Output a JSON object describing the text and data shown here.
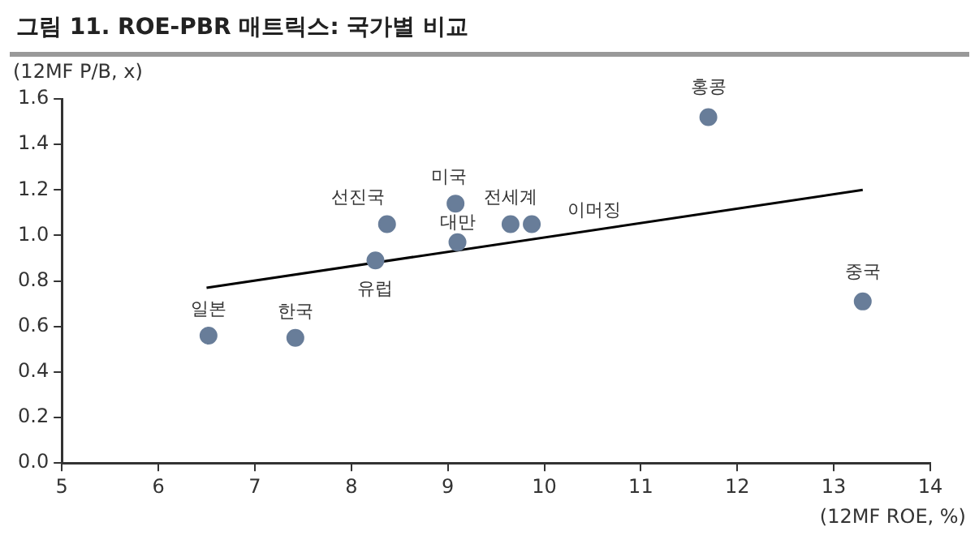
{
  "chart_data": {
    "type": "scatter",
    "title": "그림 11. ROE-PBR 매트릭스: 국가별 비교",
    "xlabel": "(12MF ROE, %)",
    "ylabel": "(12MF P/B, x)",
    "xlim": [
      5,
      14
    ],
    "xticks": [
      5,
      6,
      7,
      8,
      9,
      10,
      11,
      12,
      13,
      14
    ],
    "ylim": [
      0,
      1.6
    ],
    "yticks": [
      {
        "value": 0,
        "label": "0.0"
      },
      0.2,
      0.4,
      0.6,
      0.8,
      {
        "value": 1,
        "label": "1.0"
      },
      1.2,
      1.4,
      1.6
    ],
    "series": [
      {
        "color": "#687d99",
        "x": [
          6.52,
          7.42,
          8.25,
          8.37,
          9.08,
          9.1,
          9.65,
          9.87,
          11.7,
          13.3
        ],
        "values": [
          0.56,
          0.55,
          0.89,
          1.05,
          1.14,
          0.97,
          1.05,
          1.05,
          1.52,
          0.71
        ]
      },
      {
        "type": "line",
        "color": "#000000",
        "x": [
          6.5,
          13.3
        ],
        "values": [
          0.77,
          1.2
        ]
      }
    ],
    "annotations": [
      {
        "text": "일본",
        "x": 6.52,
        "y": 0.56
      },
      {
        "text": "한국",
        "x": 7.42,
        "y": 0.55
      },
      {
        "text": "유럽",
        "x": 8.25,
        "y": 0.89
      },
      {
        "text": "선진국",
        "x": 8.37,
        "y": 1.05
      },
      {
        "text": "미국",
        "x": 9.08,
        "y": 1.14
      },
      {
        "text": "대만",
        "x": 9.1,
        "y": 0.97
      },
      {
        "text": "전세계",
        "x": 9.65,
        "y": 1.05
      },
      {
        "text": "이머징",
        "x": 9.87,
        "y": 1.05
      },
      {
        "text": "홍콩",
        "x": 11.7,
        "y": 1.52
      },
      {
        "text": "중국",
        "x": 13.3,
        "y": 0.71
      }
    ],
    "grid": false,
    "legend": false
  }
}
